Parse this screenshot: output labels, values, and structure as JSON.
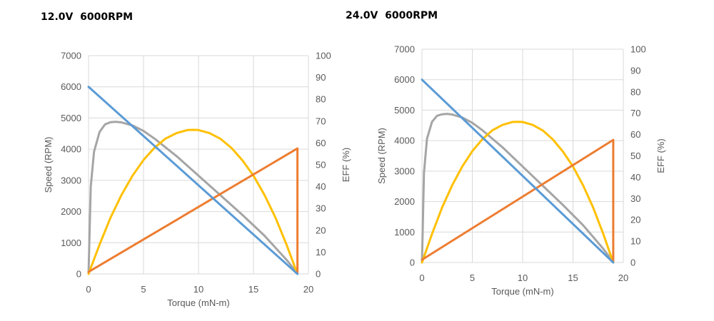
{
  "chart_data": [
    {
      "type": "line",
      "title": "12.0V  6000RPM",
      "xlabel": "Torque (mN-m)",
      "ylabel": "Speed (RPM)",
      "y2label": "EFF (%)",
      "xlim": [
        0,
        20
      ],
      "ylim": [
        0,
        7000
      ],
      "y2lim": [
        0,
        100
      ],
      "x_ticks": [
        "0",
        "5",
        "10",
        "15",
        "20"
      ],
      "y_ticks": [
        "0",
        "1000",
        "2000",
        "3000",
        "4000",
        "5000",
        "6000",
        "7000"
      ],
      "y2_ticks": [
        "0",
        "10",
        "20",
        "30",
        "40",
        "50",
        "60",
        "70",
        "80",
        "90",
        "100"
      ],
      "grid": true,
      "series": [
        {
          "color": "#5b9bd5",
          "axis": "left",
          "x": [
            0,
            19
          ],
          "y": [
            6000,
            0
          ]
        },
        {
          "color": "#ed7d31",
          "axis": "right",
          "x": [
            0,
            19,
            19
          ],
          "y": [
            0.9,
            57.5,
            0.8
          ]
        },
        {
          "color": "#a5a5a5",
          "axis": "right",
          "x": [
            0,
            0.2,
            0.5,
            1,
            1.5,
            2,
            2.5,
            3,
            4,
            5,
            6,
            8,
            10,
            12,
            14,
            16,
            17,
            18,
            19
          ],
          "y": [
            0,
            40,
            56,
            65,
            68.5,
            69.5,
            69.7,
            69.4,
            68,
            65.5,
            62,
            54,
            45,
            36,
            27,
            17.5,
            12,
            6.5,
            0.3
          ]
        },
        {
          "color": "#ffc000",
          "axis": "right",
          "x": [
            0,
            1,
            2,
            3,
            4,
            5,
            6,
            7,
            8,
            9,
            9.5,
            10,
            11,
            12,
            13,
            14,
            15,
            16,
            17,
            18,
            19
          ],
          "y": [
            0,
            13.4,
            25.8,
            36.2,
            45,
            52.2,
            57.8,
            62,
            64.5,
            65.9,
            66,
            65.9,
            64.5,
            61.9,
            57.7,
            52,
            45,
            36.2,
            25.8,
            13.5,
            0
          ]
        }
      ]
    },
    {
      "type": "line",
      "title": "24.0V  6000RPM",
      "xlabel": "Torque (mN-m)",
      "ylabel": "Speed (RPM)",
      "y2label": "EFF (%)",
      "xlim": [
        0,
        20
      ],
      "ylim": [
        0,
        7000
      ],
      "y2lim": [
        0,
        100
      ],
      "x_ticks": [
        "0",
        "5",
        "10",
        "15",
        "20"
      ],
      "y_ticks": [
        "0",
        "1000",
        "2000",
        "3000",
        "4000",
        "5000",
        "6000",
        "7000"
      ],
      "y2_ticks": [
        "0",
        "10",
        "20",
        "30",
        "40",
        "50",
        "60",
        "70",
        "80",
        "90",
        "100"
      ],
      "grid": true,
      "series": [
        {
          "color": "#5b9bd5",
          "axis": "left",
          "x": [
            0,
            19
          ],
          "y": [
            6000,
            0
          ]
        },
        {
          "color": "#ed7d31",
          "axis": "right",
          "x": [
            0,
            19,
            19
          ],
          "y": [
            1.3,
            57.5,
            0.8
          ]
        },
        {
          "color": "#a5a5a5",
          "axis": "right",
          "x": [
            0,
            0.2,
            0.5,
            1,
            1.5,
            2,
            2.5,
            3,
            4,
            5,
            6,
            8,
            10,
            12,
            14,
            16,
            17,
            18,
            19
          ],
          "y": [
            0,
            42,
            58,
            66,
            68.8,
            69.5,
            69.7,
            69.4,
            68,
            65.5,
            62,
            54,
            45,
            36,
            27,
            17.5,
            12,
            6.5,
            0.3
          ]
        },
        {
          "color": "#ffc000",
          "axis": "right",
          "x": [
            0,
            1,
            2,
            3,
            4,
            5,
            6,
            7,
            8,
            9,
            9.5,
            10,
            11,
            12,
            13,
            14,
            15,
            16,
            17,
            18,
            19
          ],
          "y": [
            0,
            13.4,
            25.8,
            36.2,
            45,
            52.2,
            57.8,
            62,
            64.5,
            65.9,
            66,
            65.9,
            64.5,
            61.9,
            57.7,
            52,
            45,
            36.2,
            25.8,
            13.5,
            0
          ]
        }
      ]
    }
  ]
}
